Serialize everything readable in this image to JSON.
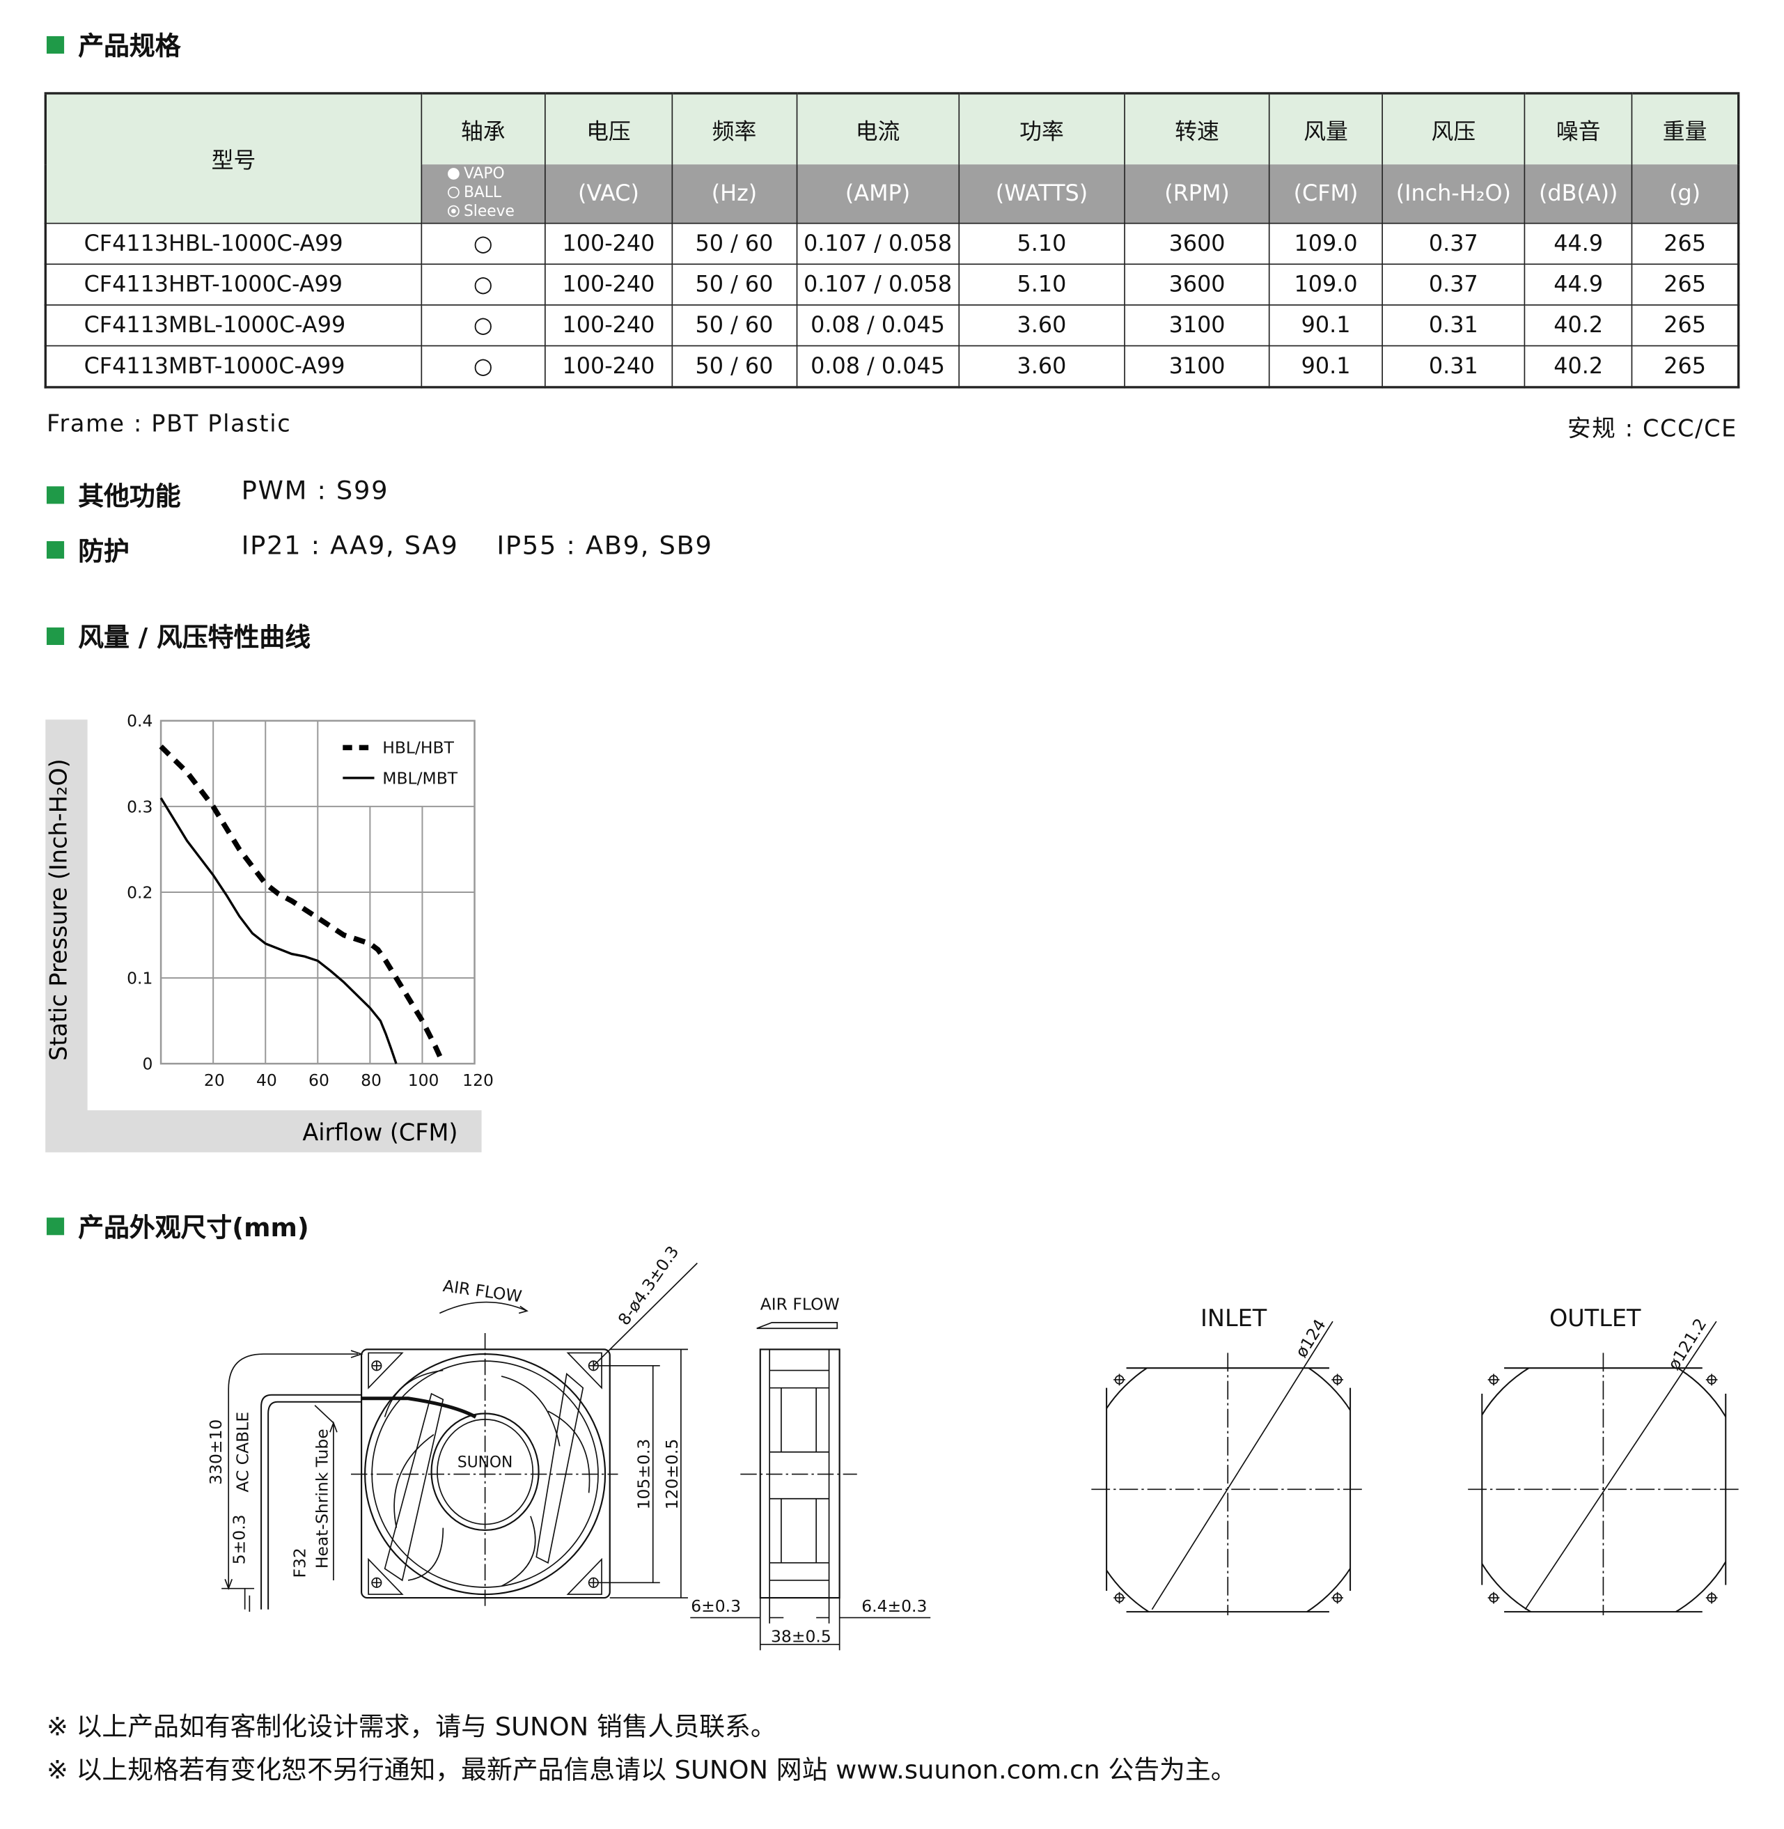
{
  "sections": {
    "specs": "产品规格",
    "other": "其他功能",
    "protection": "防护",
    "curve": "风量 / 风压特性曲线",
    "dimensions": "产品外观尺寸(mm)"
  },
  "table": {
    "headers": [
      {
        "label": "型号",
        "unit": ""
      },
      {
        "label": "轴承",
        "unit": ""
      },
      {
        "label": "电压",
        "unit": "(VAC)"
      },
      {
        "label": "频率",
        "unit": "(Hz)"
      },
      {
        "label": "电流",
        "unit": "(AMP)"
      },
      {
        "label": "功率",
        "unit": "(WATTS)"
      },
      {
        "label": "转速",
        "unit": "(RPM)"
      },
      {
        "label": "风量",
        "unit": "(CFM)"
      },
      {
        "label": "风压",
        "unit": "(Inch-H₂O)"
      },
      {
        "label": "噪音",
        "unit": "(dB(A))"
      },
      {
        "label": "重量",
        "unit": "(g)"
      }
    ],
    "bearing_legend": [
      {
        "symbol": "filled-circle",
        "label": "VAPO"
      },
      {
        "symbol": "open-circle",
        "label": "BALL"
      },
      {
        "symbol": "dot-circle",
        "label": "Sleeve"
      }
    ],
    "rows": [
      [
        "CF4113HBL-1000C-A99",
        "○",
        "100-240",
        "50 / 60",
        "0.107 / 0.058",
        "5.10",
        "3600",
        "109.0",
        "0.37",
        "44.9",
        "265"
      ],
      [
        "CF4113HBT-1000C-A99",
        "○",
        "100-240",
        "50 / 60",
        "0.107 / 0.058",
        "5.10",
        "3600",
        "109.0",
        "0.37",
        "44.9",
        "265"
      ],
      [
        "CF4113MBL-1000C-A99",
        "○",
        "100-240",
        "50 / 60",
        "0.08 / 0.045",
        "3.60",
        "3100",
        "90.1",
        "0.31",
        "40.2",
        "265"
      ],
      [
        "CF4113MBT-1000C-A99",
        "○",
        "100-240",
        "50 / 60",
        "0.08 / 0.045",
        "3.60",
        "3100",
        "90.1",
        "0.31",
        "40.2",
        "265"
      ]
    ]
  },
  "frame": "Frame : PBT Plastic",
  "safety": "安规 : CCC/CE",
  "pwm": "PWM : S99",
  "ip21": "IP21 : AA9, SA9",
  "ip55": "IP55 : AB9, SB9",
  "colors": {
    "accent": "#1f9a48",
    "header_green": "#e0eee0",
    "header_gray": "#a0a0a0",
    "chart_frame": "#dcdcdc"
  },
  "chart_data": {
    "type": "line",
    "xlabel": "Airflow (CFM)",
    "ylabel": "Static Pressure (Inch-H₂O)",
    "xlim": [
      0,
      120
    ],
    "ylim": [
      0,
      0.4
    ],
    "xticks": [
      "20",
      "40",
      "60",
      "80",
      "100",
      "120"
    ],
    "yticks": [
      "0",
      "0.1",
      "0.2",
      "0.3",
      "0.4"
    ],
    "grid": true,
    "legend": "top-right",
    "series": [
      {
        "name": "HBL/HBT",
        "style": "dashed",
        "x": [
          0,
          5,
          10,
          15,
          20,
          25,
          30,
          35,
          40,
          45,
          50,
          55,
          60,
          65,
          70,
          75,
          80,
          83,
          86,
          90,
          95,
          100,
          105,
          108
        ],
        "y": [
          0.37,
          0.355,
          0.34,
          0.32,
          0.3,
          0.275,
          0.25,
          0.23,
          0.21,
          0.198,
          0.19,
          0.18,
          0.17,
          0.16,
          0.15,
          0.145,
          0.14,
          0.133,
          0.12,
          0.1,
          0.075,
          0.05,
          0.02,
          0.0
        ]
      },
      {
        "name": "MBL/MBT",
        "style": "solid",
        "x": [
          0,
          5,
          10,
          15,
          20,
          25,
          30,
          35,
          40,
          45,
          50,
          55,
          60,
          65,
          70,
          75,
          80,
          84,
          86,
          88,
          90
        ],
        "y": [
          0.31,
          0.285,
          0.26,
          0.24,
          0.22,
          0.197,
          0.172,
          0.152,
          0.14,
          0.134,
          0.128,
          0.125,
          0.12,
          0.108,
          0.095,
          0.08,
          0.065,
          0.05,
          0.035,
          0.018,
          0.0
        ]
      }
    ]
  },
  "drawing": {
    "air_flow_front": "AIR FLOW",
    "air_flow_side": "AIR FLOW",
    "holes": "8-ø4.3±0.3",
    "cable_length": "330±10",
    "ac_cable": "AC CABLE",
    "strip": "5±0.3",
    "tube_code": "F32",
    "tube": "Heat-Shrink Tube",
    "logo": "SUNON",
    "hole_spacing": "105±0.3",
    "size": "120±0.5",
    "depth_left": "6±0.3",
    "depth_right": "6.4±0.3",
    "depth": "38±0.5",
    "inlet": "INLET",
    "inlet_dia": "ø124",
    "outlet": "OUTLET",
    "outlet_dia": "ø121.2"
  },
  "notes": [
    "※ 以上产品如有客制化设计需求，请与 SUNON 销售人员联系。",
    "※ 以上规格若有变化恕不另行通知，最新产品信息请以 SUNON 网站 www.suunon.com.cn 公告为主。"
  ]
}
